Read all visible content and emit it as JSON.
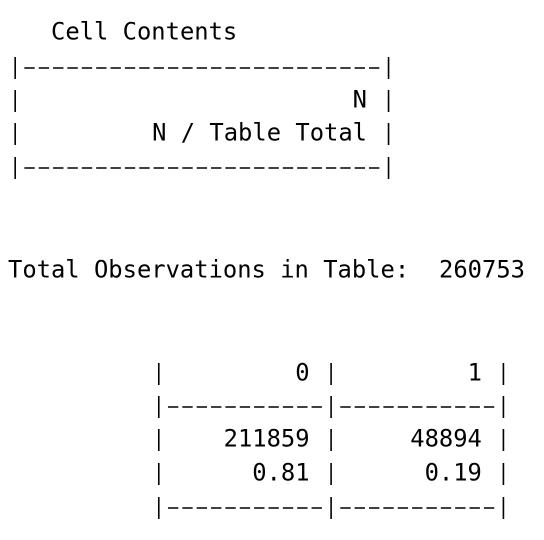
{
  "cell_contents": {
    "title": "Cell Contents",
    "lines": [
      "N",
      "N / Table Total"
    ]
  },
  "total_observations": {
    "label": "Total Observations in Table:",
    "value": 260753
  },
  "table": {
    "columns": [
      "0",
      "1"
    ],
    "rows": [
      [
        211859,
        48894
      ],
      [
        0.81,
        0.19
      ]
    ]
  }
}
